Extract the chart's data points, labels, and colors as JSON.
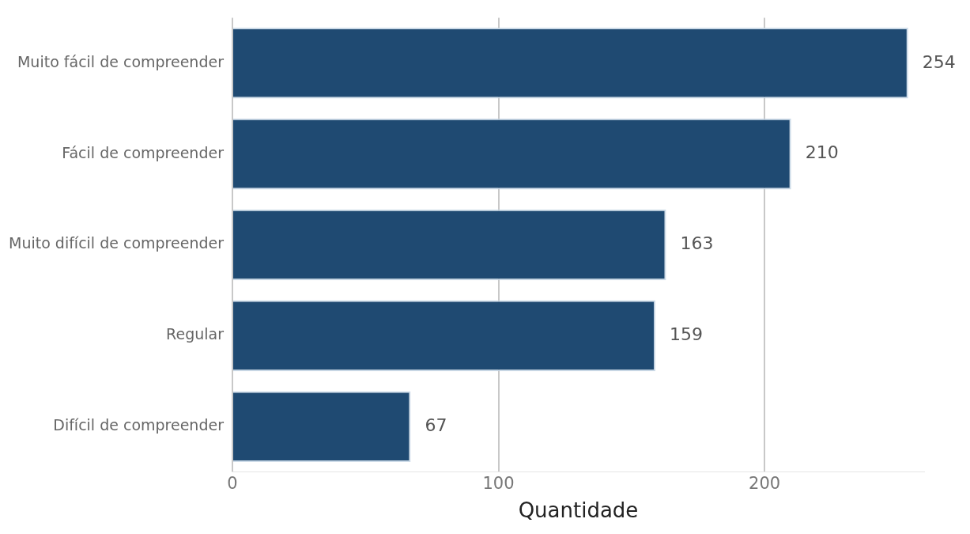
{
  "chart_data": {
    "type": "bar",
    "orientation": "horizontal",
    "xlabel": "Quantidade",
    "categories": [
      "Muito fácil de compreender",
      "Fácil de compreender",
      "Muito difícil de compreender",
      "Regular",
      "Difícil de compreender"
    ],
    "values": [
      254,
      210,
      163,
      159,
      67
    ],
    "color": "#1f4a72",
    "xlim": [
      0,
      260
    ],
    "xticks": [
      0,
      100,
      200
    ],
    "grid": "x",
    "data_labels": true,
    "legend": false
  }
}
